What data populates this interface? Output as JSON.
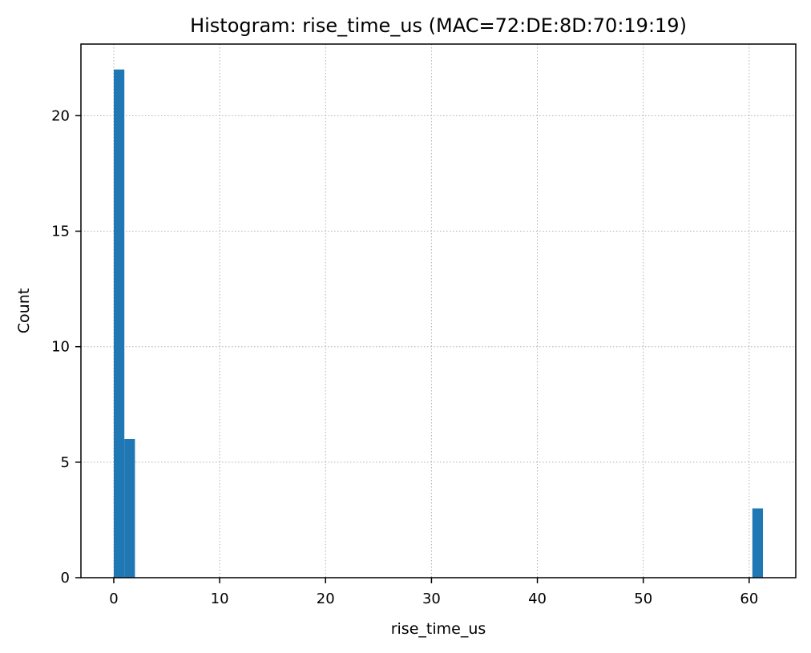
{
  "chart_data": {
    "type": "bar",
    "title": "Histogram: rise_time_us (MAC=72:DE:8D:70:19:19)",
    "xlabel": "rise_time_us",
    "ylabel": "Count",
    "xlim": [
      -3.1,
      64.4
    ],
    "ylim": [
      0,
      23.1
    ],
    "grid": true,
    "x_ticks": [
      0,
      10,
      20,
      30,
      40,
      50,
      60
    ],
    "y_ticks": [
      0,
      5,
      10,
      15,
      20
    ],
    "bins": [
      {
        "x0": 0,
        "x1": 1,
        "count": 22
      },
      {
        "x0": 1,
        "x1": 2,
        "count": 6
      },
      {
        "x0": 60.3,
        "x1": 61.3,
        "count": 3
      }
    ],
    "colors": {
      "bar": "#1f77b4",
      "grid": "#b0b0b0",
      "axis": "#000000"
    }
  }
}
